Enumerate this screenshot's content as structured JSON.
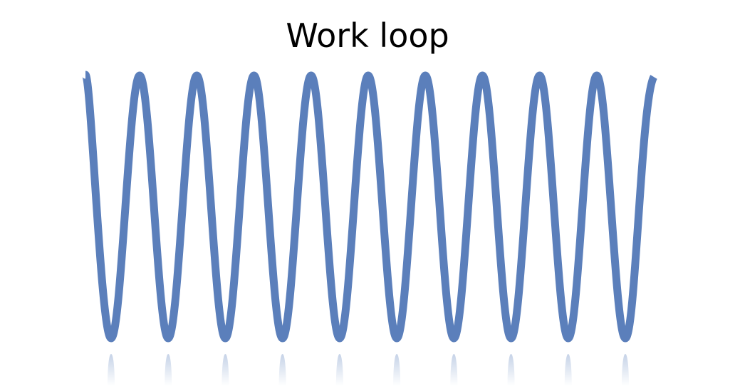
{
  "title": "Work loop",
  "wave": {
    "peaks": 10,
    "troughs": 10,
    "color": "#5b7fbb",
    "reflection": true
  }
}
